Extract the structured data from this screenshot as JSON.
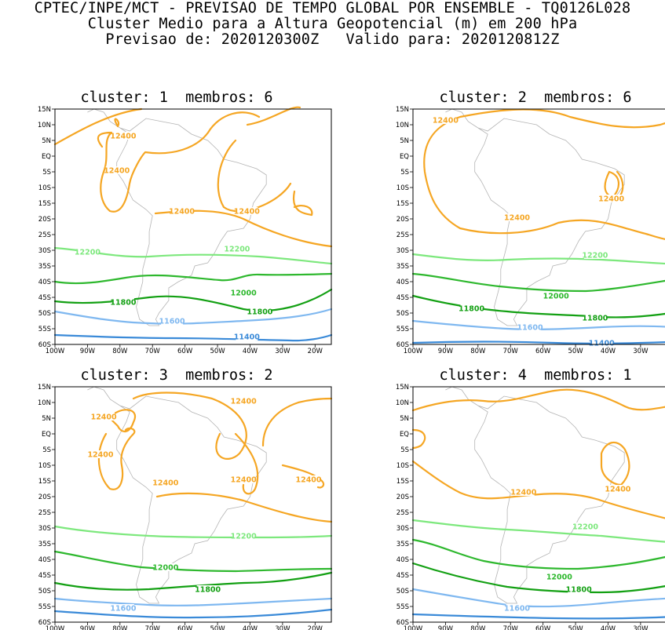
{
  "header": {
    "line1": "CPTEC/INPE/MCT - PREVISAO DE TEMPO GLOBAL POR ENSEMBLE - TQ0126L028",
    "line2": "Cluster Medio para a Altura Geopotencial (m) em 200 hPa",
    "line3": "Previsao de: 2020120300Z   Valido para: 2020120812Z"
  },
  "lat_ticks": [
    "15N",
    "10N",
    "5N",
    "EQ",
    "5S",
    "10S",
    "15S",
    "20S",
    "25S",
    "30S",
    "35S",
    "40S",
    "45S",
    "50S",
    "55S",
    "60S"
  ],
  "lon_ticks": [
    "100W",
    "90W",
    "80W",
    "70W",
    "60W",
    "50W",
    "40W",
    "30W",
    "20W"
  ],
  "colors": {
    "h12400": "#f5a623",
    "h12200": "#7de87d",
    "h12000": "#2eb82e",
    "h11800": "#13a013",
    "h11600": "#7fb8f0",
    "h11400": "#3a8ad8",
    "coast": "#b4b4b4"
  },
  "panels": [
    {
      "title": "cluster: 1  membros: 6",
      "labels": [
        {
          "text": "12400",
          "lon": -79,
          "lat": 6
        },
        {
          "text": "12400",
          "lon": -81,
          "lat": -5
        },
        {
          "text": "12400",
          "lon": -61,
          "lat": -18
        },
        {
          "text": "12400",
          "lon": -41,
          "lat": -18
        },
        {
          "text": "12200",
          "lon": -90,
          "lat": -31
        },
        {
          "text": "12200",
          "lon": -44,
          "lat": -30
        },
        {
          "text": "12000",
          "lon": -42,
          "lat": -44
        },
        {
          "text": "11800",
          "lon": -79,
          "lat": -47
        },
        {
          "text": "11800",
          "lon": -37,
          "lat": -50
        },
        {
          "text": "11600",
          "lon": -64,
          "lat": -53
        },
        {
          "text": "11400",
          "lon": -41,
          "lat": -58
        }
      ]
    },
    {
      "title": "cluster: 2  membros: 6",
      "labels": [
        {
          "text": "12400",
          "lon": -90,
          "lat": 11
        },
        {
          "text": "12400",
          "lon": -39,
          "lat": -14
        },
        {
          "text": "12400",
          "lon": -68,
          "lat": -20
        },
        {
          "text": "12200",
          "lon": -44,
          "lat": -32
        },
        {
          "text": "12000",
          "lon": -56,
          "lat": -45
        },
        {
          "text": "11800",
          "lon": -82,
          "lat": -49
        },
        {
          "text": "11800",
          "lon": -44,
          "lat": -52
        },
        {
          "text": "11600",
          "lon": -64,
          "lat": -55
        },
        {
          "text": "11400",
          "lon": -42,
          "lat": -60
        }
      ]
    },
    {
      "title": "cluster: 3  membros: 2",
      "labels": [
        {
          "text": "12400",
          "lon": -42,
          "lat": 10
        },
        {
          "text": "12400",
          "lon": -85,
          "lat": 5
        },
        {
          "text": "12400",
          "lon": -86,
          "lat": -7
        },
        {
          "text": "12400",
          "lon": -66,
          "lat": -16
        },
        {
          "text": "12400",
          "lon": -42,
          "lat": -15
        },
        {
          "text": "12400",
          "lon": -22,
          "lat": -15
        },
        {
          "text": "12200",
          "lon": -42,
          "lat": -33
        },
        {
          "text": "12000",
          "lon": -66,
          "lat": -43
        },
        {
          "text": "11800",
          "lon": -53,
          "lat": -50
        },
        {
          "text": "11600",
          "lon": -79,
          "lat": -56
        }
      ]
    },
    {
      "title": "cluster: 4  membros: 1",
      "labels": [
        {
          "text": "12400",
          "lon": -66,
          "lat": -19
        },
        {
          "text": "12400",
          "lon": -37,
          "lat": -18
        },
        {
          "text": "12200",
          "lon": -47,
          "lat": -30
        },
        {
          "text": "12000",
          "lon": -55,
          "lat": -46
        },
        {
          "text": "11800",
          "lon": -49,
          "lat": -50
        },
        {
          "text": "11600",
          "lon": -68,
          "lat": -56
        }
      ]
    }
  ]
}
